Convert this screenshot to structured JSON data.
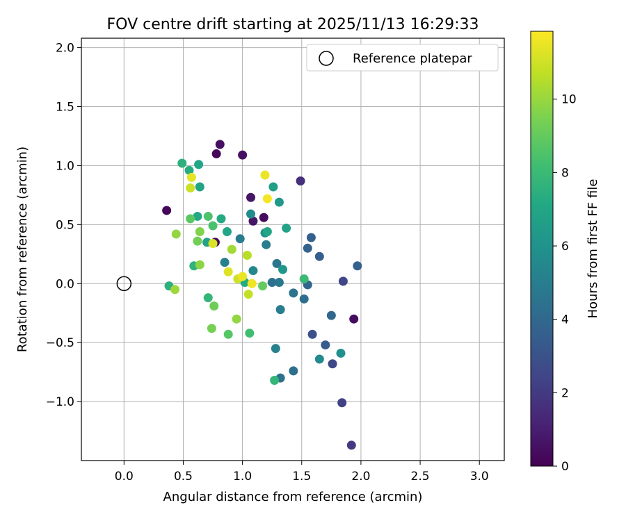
{
  "chart_data": {
    "type": "scatter",
    "title": "FOV centre drift starting at 2025/11/13 16:29:33",
    "xlabel": "Angular distance from reference (arcmin)",
    "ylabel": "Rotation from reference (arcmin)",
    "xlim": [
      -0.36,
      3.21
    ],
    "ylim": [
      -1.5,
      2.08
    ],
    "xticks": [
      0.0,
      0.5,
      1.0,
      1.5,
      2.0,
      2.5,
      3.0
    ],
    "xtick_labels": [
      "0.0",
      "0.5",
      "1.0",
      "1.5",
      "2.0",
      "2.5",
      "3.0"
    ],
    "yticks": [
      -1.0,
      -0.5,
      0.0,
      0.5,
      1.0,
      1.5,
      2.0
    ],
    "ytick_labels": [
      "−1.0",
      "−0.5",
      "0.0",
      "0.5",
      "1.0",
      "1.5",
      "2.0"
    ],
    "grid": true,
    "legend": {
      "position": "top-right",
      "entries": [
        "Reference platepar"
      ]
    },
    "reference_point": {
      "x": 0.0,
      "y": 0.0
    },
    "colorbar": {
      "label": "Hours from first FF file",
      "min": 0,
      "max": 11.85,
      "ticks": [
        0,
        2,
        4,
        6,
        8,
        10
      ],
      "tick_labels": [
        "0",
        "2",
        "4",
        "6",
        "8",
        "10"
      ],
      "colormap": "viridis"
    },
    "points": [
      {
        "x": 0.36,
        "y": 0.62,
        "h": 0.2
      },
      {
        "x": 0.78,
        "y": 1.1,
        "h": 0.2
      },
      {
        "x": 0.81,
        "y": 1.18,
        "h": 0.5
      },
      {
        "x": 1.0,
        "y": 1.09,
        "h": 0.5
      },
      {
        "x": 1.07,
        "y": 0.73,
        "h": 0.7
      },
      {
        "x": 1.09,
        "y": 0.53,
        "h": 0.7
      },
      {
        "x": 1.18,
        "y": 0.56,
        "h": 0.4
      },
      {
        "x": 0.77,
        "y": 0.35,
        "h": 0.3
      },
      {
        "x": 1.94,
        "y": -0.3,
        "h": 0.4
      },
      {
        "x": 1.49,
        "y": 0.87,
        "h": 1.6
      },
      {
        "x": 1.92,
        "y": -1.37,
        "h": 2.0
      },
      {
        "x": 1.84,
        "y": -1.01,
        "h": 2.3
      },
      {
        "x": 1.76,
        "y": -0.68,
        "h": 2.6
      },
      {
        "x": 1.85,
        "y": 0.02,
        "h": 2.5
      },
      {
        "x": 1.59,
        "y": -0.43,
        "h": 2.9
      },
      {
        "x": 1.7,
        "y": -0.52,
        "h": 3.4
      },
      {
        "x": 1.97,
        "y": 0.15,
        "h": 3.7
      },
      {
        "x": 1.65,
        "y": 0.23,
        "h": 3.5
      },
      {
        "x": 1.58,
        "y": 0.39,
        "h": 3.6
      },
      {
        "x": 1.55,
        "y": 0.3,
        "h": 3.8
      },
      {
        "x": 1.55,
        "y": -0.01,
        "h": 3.9
      },
      {
        "x": 1.75,
        "y": -0.27,
        "h": 4.0
      },
      {
        "x": 1.43,
        "y": -0.74,
        "h": 4.3
      },
      {
        "x": 1.32,
        "y": -0.8,
        "h": 4.4
      },
      {
        "x": 1.52,
        "y": -0.13,
        "h": 4.3
      },
      {
        "x": 1.43,
        "y": -0.08,
        "h": 4.5
      },
      {
        "x": 1.25,
        "y": 0.01,
        "h": 4.4
      },
      {
        "x": 1.29,
        "y": 0.17,
        "h": 4.6
      },
      {
        "x": 1.31,
        "y": 0.01,
        "h": 4.7
      },
      {
        "x": 1.32,
        "y": -0.22,
        "h": 5.0
      },
      {
        "x": 1.2,
        "y": 0.33,
        "h": 5.0
      },
      {
        "x": 0.98,
        "y": 0.38,
        "h": 4.9
      },
      {
        "x": 0.85,
        "y": 0.18,
        "h": 5.1
      },
      {
        "x": 1.28,
        "y": -0.55,
        "h": 5.2
      },
      {
        "x": 1.65,
        "y": -0.64,
        "h": 5.6
      },
      {
        "x": 1.83,
        "y": -0.59,
        "h": 5.9
      },
      {
        "x": 1.09,
        "y": 0.11,
        "h": 5.5
      },
      {
        "x": 1.07,
        "y": 0.59,
        "h": 5.7
      },
      {
        "x": 1.19,
        "y": 0.43,
        "h": 6.0
      },
      {
        "x": 1.34,
        "y": 0.12,
        "h": 6.2
      },
      {
        "x": 1.31,
        "y": 0.69,
        "h": 6.3
      },
      {
        "x": 1.26,
        "y": 0.82,
        "h": 6.6
      },
      {
        "x": 1.37,
        "y": 0.47,
        "h": 6.8
      },
      {
        "x": 1.21,
        "y": 0.44,
        "h": 6.9
      },
      {
        "x": 0.87,
        "y": 0.44,
        "h": 7.0
      },
      {
        "x": 0.82,
        "y": 0.55,
        "h": 7.2
      },
      {
        "x": 0.62,
        "y": 0.57,
        "h": 7.1
      },
      {
        "x": 0.64,
        "y": 0.82,
        "h": 6.9
      },
      {
        "x": 0.63,
        "y": 1.01,
        "h": 7.0
      },
      {
        "x": 0.55,
        "y": 0.96,
        "h": 7.3
      },
      {
        "x": 0.49,
        "y": 1.02,
        "h": 7.5
      },
      {
        "x": 0.7,
        "y": 0.35,
        "h": 6.8
      },
      {
        "x": 0.59,
        "y": 0.15,
        "h": 7.6
      },
      {
        "x": 0.38,
        "y": -0.02,
        "h": 7.5
      },
      {
        "x": 0.71,
        "y": -0.12,
        "h": 7.8
      },
      {
        "x": 1.02,
        "y": 0.01,
        "h": 7.2
      },
      {
        "x": 1.27,
        "y": -0.82,
        "h": 7.8
      },
      {
        "x": 1.52,
        "y": 0.04,
        "h": 8.0
      },
      {
        "x": 1.06,
        "y": -0.42,
        "h": 8.2
      },
      {
        "x": 0.75,
        "y": 0.49,
        "h": 8.4
      },
      {
        "x": 0.71,
        "y": 0.57,
        "h": 8.5
      },
      {
        "x": 0.56,
        "y": 0.55,
        "h": 8.8
      },
      {
        "x": 0.88,
        "y": -0.43,
        "h": 8.7
      },
      {
        "x": 0.76,
        "y": -0.19,
        "h": 9.2
      },
      {
        "x": 0.74,
        "y": -0.38,
        "h": 9.4
      },
      {
        "x": 0.62,
        "y": 0.36,
        "h": 9.3
      },
      {
        "x": 0.64,
        "y": 0.44,
        "h": 9.6
      },
      {
        "x": 0.64,
        "y": 0.16,
        "h": 9.8
      },
      {
        "x": 0.44,
        "y": 0.42,
        "h": 9.9
      },
      {
        "x": 0.43,
        "y": -0.05,
        "h": 10.1
      },
      {
        "x": 0.95,
        "y": -0.3,
        "h": 9.9
      },
      {
        "x": 0.91,
        "y": 0.29,
        "h": 10.2
      },
      {
        "x": 1.17,
        "y": -0.02,
        "h": 9.0
      },
      {
        "x": 1.04,
        "y": 0.24,
        "h": 10.6
      },
      {
        "x": 1.05,
        "y": -0.09,
        "h": 10.8
      },
      {
        "x": 0.96,
        "y": 0.04,
        "h": 11.0
      },
      {
        "x": 0.56,
        "y": 0.81,
        "h": 10.9
      },
      {
        "x": 0.57,
        "y": 0.9,
        "h": 11.4
      },
      {
        "x": 0.75,
        "y": 0.34,
        "h": 11.2
      },
      {
        "x": 0.88,
        "y": 0.1,
        "h": 11.3
      },
      {
        "x": 1.0,
        "y": 0.06,
        "h": 11.5
      },
      {
        "x": 1.08,
        "y": 0.0,
        "h": 11.6
      },
      {
        "x": 1.19,
        "y": 0.92,
        "h": 11.5
      },
      {
        "x": 1.21,
        "y": 0.72,
        "h": 11.7
      }
    ]
  }
}
